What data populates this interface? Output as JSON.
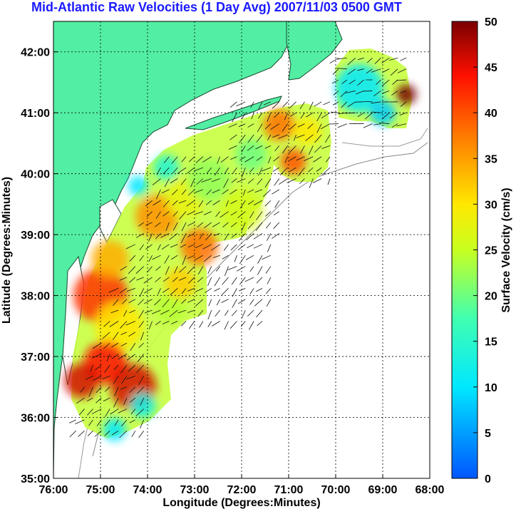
{
  "title": "Mid-Atlantic Raw Velocities (1 Day Avg) 2007/11/03 0500 GMT",
  "xlabel": "Longitude (Degrees:Minutes)",
  "ylabel": "Latitude (Degrees:Minutes)",
  "colorbar_label": "Surface Velocity (cm/s)",
  "x_ticks": [
    "76:00",
    "75:00",
    "74:00",
    "73:00",
    "72:00",
    "71:00",
    "70:00",
    "69:00",
    "68:00"
  ],
  "y_ticks": [
    "35:00",
    "36:00",
    "37:00",
    "38:00",
    "39:00",
    "40:00",
    "41:00",
    "42:00"
  ],
  "cb_ticks": [
    "0",
    "5",
    "10",
    "15",
    "20",
    "25",
    "30",
    "35",
    "40",
    "45",
    "50"
  ],
  "colors": {
    "land": "#52eea3",
    "title": "#1a1aff"
  },
  "chart_data": {
    "type": "map",
    "xlim": [
      -76,
      -68
    ],
    "ylim": [
      35,
      42.5
    ],
    "colorbar_range": [
      0,
      50
    ],
    "grid": true,
    "regions": [
      {
        "lon": -74.9,
        "lat": 37.9,
        "speed": 40
      },
      {
        "lon": -74.4,
        "lat": 36.4,
        "speed": 45
      },
      {
        "lon": -75.3,
        "lat": 36.5,
        "speed": 45
      },
      {
        "lon": -73.8,
        "lat": 39.2,
        "speed": 35
      },
      {
        "lon": -72.9,
        "lat": 38.8,
        "speed": 38
      },
      {
        "lon": -71.2,
        "lat": 40.8,
        "speed": 38
      },
      {
        "lon": -68.5,
        "lat": 41.3,
        "speed": 50
      },
      {
        "lon": -69.5,
        "lat": 41.4,
        "speed": 12
      },
      {
        "lon": -73.7,
        "lat": 40.1,
        "speed": 20
      },
      {
        "lon": -74.5,
        "lat": 35.8,
        "speed": 10
      }
    ]
  }
}
